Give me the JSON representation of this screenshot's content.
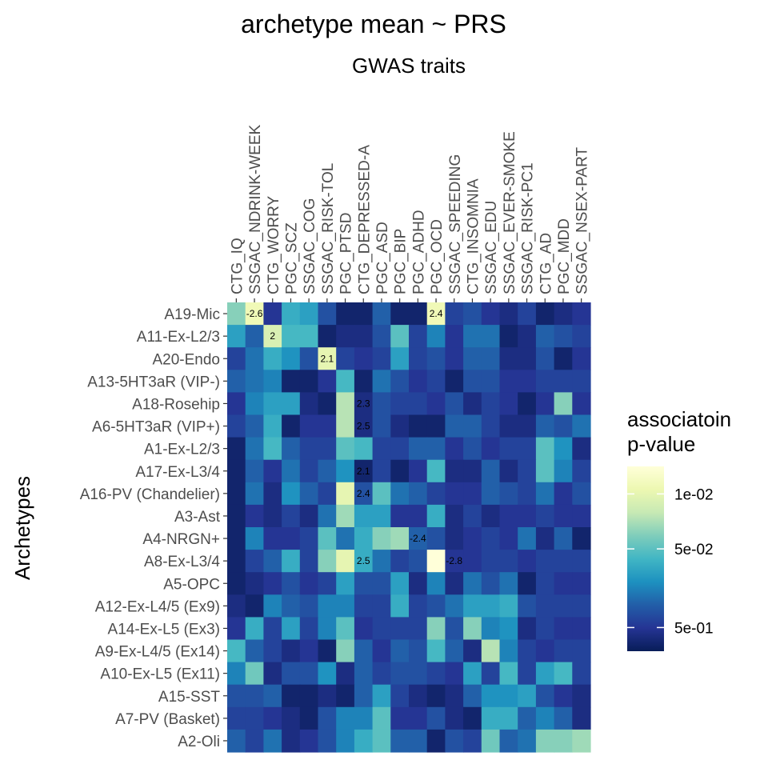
{
  "chart_data": {
    "type": "heatmap",
    "title": "archetype mean ~ PRS",
    "xlabel": "GWAS traits",
    "ylabel": "Archetypes",
    "x_categories": [
      "CTG_IQ",
      "SSGAC_NDRINK-WEEK",
      "CTG_WORRY",
      "PGC_SCZ",
      "SSGAC_COG",
      "SSGAC_RISK-TOL",
      "PGC_PTSD",
      "CTG_DEPRESSED-A",
      "PGC_ASD",
      "PGC_BIP",
      "PGC_ADHD",
      "PGC_OCD",
      "SSGAC_SPEEDING",
      "CTG_INSOMNIA",
      "SSGAC_EDU",
      "SSGAC_EVER-SMOKE",
      "SSGAC_RISK-PC1",
      "CTG_AD",
      "PGC_MDD",
      "SSGAC_NSEX-PART"
    ],
    "y_categories": [
      "A19-Mic",
      "A11-Ex-L2/3",
      "A20-Endo",
      "A13-5HT3aR (VIP-)",
      "A18-Rosehip",
      "A6-5HT3aR (VIP+)",
      "A1-Ex-L2/3",
      "A17-Ex-L3/4",
      "A16-PV (Chandelier)",
      "A3-Ast",
      "A4-NRGN+",
      "A8-Ex-L3/4",
      "A5-OPC",
      "A12-Ex-L4/5 (Ex9)",
      "A14-Ex-L5 (Ex3)",
      "A9-Ex-L4/5 (Ex14)",
      "A10-Ex-L5 (Ex11)",
      "A15-SST",
      "A7-PV (Basket)",
      "A2-Oli"
    ],
    "value_description": "-log10 p-value, rows follow y_categories, columns follow x_categories",
    "values": [
      [
        1.5,
        2.1,
        0.3,
        1.1,
        1.0,
        0.5,
        0.1,
        0.1,
        0.6,
        0.1,
        0.1,
        2.1,
        0.4,
        0.5,
        0.3,
        0.2,
        0.4,
        0.1,
        0.2,
        0.3
      ],
      [
        1.0,
        0.6,
        1.9,
        1.2,
        1.2,
        0.1,
        0.2,
        0.2,
        0.5,
        1.3,
        0.4,
        0.8,
        0.3,
        0.7,
        0.7,
        0.1,
        0.2,
        0.6,
        0.5,
        0.4
      ],
      [
        0.4,
        0.7,
        1.1,
        0.9,
        0.5,
        2.0,
        0.4,
        0.3,
        0.4,
        1.0,
        0.4,
        0.5,
        0.3,
        0.6,
        0.6,
        0.2,
        0.2,
        0.5,
        0.1,
        0.3
      ],
      [
        0.6,
        0.7,
        0.8,
        0.1,
        0.1,
        0.3,
        1.2,
        0.1,
        0.7,
        0.5,
        0.3,
        0.4,
        0.1,
        0.5,
        0.5,
        0.3,
        0.3,
        0.4,
        0.4,
        0.4
      ],
      [
        0.3,
        0.8,
        1.0,
        1.0,
        0.2,
        0.1,
        1.7,
        0.2,
        0.5,
        0.4,
        0.4,
        0.3,
        0.5,
        0.2,
        0.4,
        0.3,
        0.1,
        0.3,
        1.5,
        0.3
      ],
      [
        0.4,
        0.6,
        1.1,
        0.1,
        0.3,
        0.3,
        1.7,
        0.2,
        0.5,
        0.2,
        0.1,
        0.1,
        0.6,
        0.6,
        0.4,
        0.2,
        0.2,
        0.6,
        0.5,
        0.7
      ],
      [
        0.1,
        0.7,
        1.2,
        0.6,
        0.4,
        0.4,
        1.3,
        1.2,
        0.4,
        0.4,
        0.6,
        0.6,
        0.3,
        0.5,
        0.3,
        0.4,
        0.4,
        1.3,
        0.9,
        0.2
      ],
      [
        0.1,
        0.6,
        0.3,
        0.7,
        0.4,
        0.6,
        0.9,
        0.1,
        0.4,
        0.1,
        0.3,
        1.2,
        0.2,
        0.2,
        0.6,
        0.2,
        0.4,
        1.3,
        0.8,
        0.4
      ],
      [
        0.1,
        0.7,
        0.2,
        0.9,
        0.6,
        0.4,
        2.0,
        0.5,
        1.3,
        0.7,
        0.6,
        0.4,
        0.3,
        0.3,
        0.6,
        0.5,
        0.4,
        0.7,
        0.3,
        0.5
      ],
      [
        0.1,
        0.3,
        0.2,
        0.4,
        0.2,
        0.7,
        1.6,
        1.0,
        1.0,
        0.3,
        0.3,
        1.1,
        0.2,
        0.4,
        0.2,
        0.3,
        0.3,
        0.4,
        0.3,
        0.3
      ],
      [
        0.1,
        0.8,
        0.3,
        0.3,
        0.4,
        1.3,
        0.7,
        1.1,
        1.5,
        1.6,
        0.6,
        0.5,
        0.2,
        0.3,
        0.4,
        0.3,
        0.7,
        0.2,
        0.6,
        0.1
      ],
      [
        0.1,
        0.4,
        0.6,
        1.1,
        0.4,
        1.5,
        2.0,
        1.1,
        0.7,
        0.4,
        0.5,
        2.4,
        0.3,
        0.3,
        0.4,
        0.4,
        0.3,
        0.4,
        0.4,
        0.4
      ],
      [
        0.1,
        0.2,
        0.3,
        0.5,
        0.3,
        0.4,
        1.0,
        0.5,
        0.5,
        1.0,
        0.2,
        0.8,
        0.2,
        0.7,
        0.5,
        0.7,
        0.1,
        0.4,
        0.3,
        0.3
      ],
      [
        0.2,
        0.1,
        0.8,
        0.6,
        0.5,
        0.8,
        0.8,
        0.4,
        0.4,
        1.1,
        0.4,
        0.5,
        0.7,
        1.0,
        1.0,
        1.1,
        0.5,
        0.4,
        0.4,
        0.4
      ],
      [
        0.3,
        1.1,
        0.4,
        1.0,
        0.4,
        0.8,
        1.3,
        0.3,
        0.4,
        0.4,
        0.4,
        1.5,
        0.5,
        1.5,
        0.8,
        0.9,
        0.2,
        0.4,
        0.3,
        0.3
      ],
      [
        1.2,
        0.6,
        0.4,
        0.2,
        0.3,
        0.1,
        1.5,
        0.6,
        0.3,
        0.6,
        0.5,
        1.2,
        0.6,
        0.2,
        1.7,
        0.8,
        0.4,
        0.3,
        0.4,
        0.4
      ],
      [
        0.8,
        1.4,
        0.2,
        0.5,
        0.5,
        0.9,
        0.2,
        0.6,
        0.4,
        0.5,
        0.5,
        0.4,
        0.3,
        1.0,
        0.4,
        1.2,
        0.4,
        1.0,
        1.2,
        0.4
      ],
      [
        0.5,
        0.5,
        0.6,
        0.1,
        0.1,
        0.2,
        0.1,
        0.6,
        1.0,
        0.4,
        0.2,
        0.1,
        0.2,
        0.6,
        0.9,
        0.9,
        1.0,
        0.5,
        0.3,
        0.2
      ],
      [
        0.4,
        0.4,
        0.3,
        0.2,
        0.1,
        0.5,
        0.8,
        0.8,
        1.3,
        0.3,
        0.3,
        0.5,
        0.2,
        0.1,
        1.1,
        1.1,
        0.6,
        0.8,
        0.6,
        0.2
      ],
      [
        0.6,
        0.4,
        0.7,
        0.2,
        0.3,
        0.5,
        0.8,
        1.1,
        1.3,
        0.6,
        0.6,
        0.1,
        0.5,
        0.4,
        1.4,
        0.6,
        0.7,
        1.5,
        1.5,
        1.6
      ]
    ],
    "annotations": [
      {
        "row": "A19-Mic",
        "col": "SSGAC_NDRINK-WEEK",
        "text": "-2.6"
      },
      {
        "row": "A19-Mic",
        "col": "PGC_OCD",
        "text": "2.4"
      },
      {
        "row": "A11-Ex-L2/3",
        "col": "CTG_WORRY",
        "text": "2"
      },
      {
        "row": "A20-Endo",
        "col": "SSGAC_RISK-TOL",
        "text": "2.1"
      },
      {
        "row": "A18-Rosehip",
        "col": "CTG_DEPRESSED-A",
        "text": "2.3"
      },
      {
        "row": "A6-5HT3aR (VIP+)",
        "col": "CTG_DEPRESSED-A",
        "text": "2.5"
      },
      {
        "row": "A17-Ex-L3/4",
        "col": "CTG_DEPRESSED-A",
        "text": "2.1"
      },
      {
        "row": "A16-PV (Chandelier)",
        "col": "CTG_DEPRESSED-A",
        "text": "2.4"
      },
      {
        "row": "A4-NRGN+",
        "col": "PGC_ADHD",
        "text": "-2.4"
      },
      {
        "row": "A8-Ex-L3/4",
        "col": "CTG_DEPRESSED-A",
        "text": "2.5"
      },
      {
        "row": "A8-Ex-L3/4",
        "col": "SSGAC_SPEEDING",
        "text": "-2.8"
      }
    ],
    "legend": {
      "title_line1": "associatoin",
      "title_line2": "p-value",
      "ticks": [
        {
          "label": "1e-02",
          "value": 2.0
        },
        {
          "label": "5e-02",
          "value": 1.301
        },
        {
          "label": "5e-01",
          "value": 0.301
        }
      ],
      "range": [
        0,
        2.35
      ],
      "placement": "right"
    },
    "colors": [
      "#081d58",
      "#253494",
      "#225ea8",
      "#1d91c0",
      "#41b6c4",
      "#7fcdbb",
      "#c7e9b4",
      "#edf8b1",
      "#ffffd9"
    ]
  }
}
